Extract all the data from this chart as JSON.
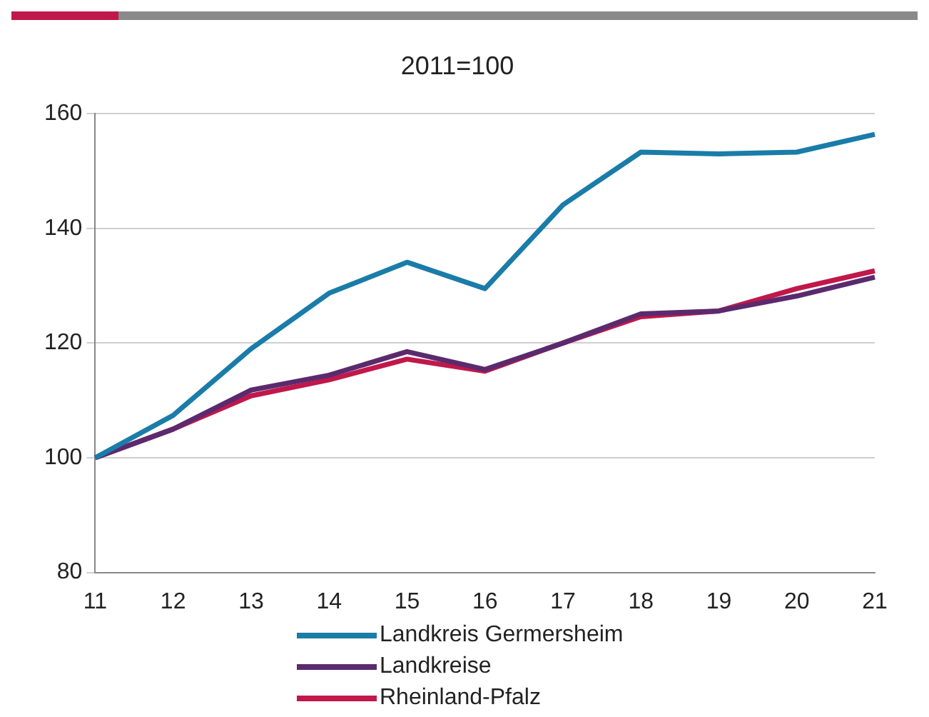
{
  "chart_data": {
    "type": "line",
    "title": "2011=100",
    "categories": [
      "11",
      "12",
      "13",
      "14",
      "15",
      "16",
      "17",
      "18",
      "19",
      "20",
      "21"
    ],
    "series": [
      {
        "name": "Landkreis Germersheim",
        "color": "#1a7ca8",
        "values": [
          100,
          107.4,
          119,
          128.7,
          134.1,
          129.5,
          144.1,
          153.3,
          153,
          153.3,
          156.4
        ]
      },
      {
        "name": "Landkreise",
        "color": "#5b2a6e",
        "values": [
          100,
          105,
          111.8,
          114.4,
          118.5,
          115.4,
          120,
          125.1,
          125.6,
          128.2,
          131.5
        ]
      },
      {
        "name": "Rheinland-Pfalz",
        "color": "#c0184a",
        "values": [
          100,
          105,
          110.8,
          113.6,
          117.2,
          115.1,
          120,
          124.6,
          125.6,
          129.5,
          132.6
        ]
      }
    ],
    "ylim": [
      80,
      160
    ],
    "yticks": [
      80,
      100,
      120,
      140,
      160
    ],
    "grid": "y",
    "legend": "bottom",
    "marker": "none",
    "line_style": "solid"
  }
}
